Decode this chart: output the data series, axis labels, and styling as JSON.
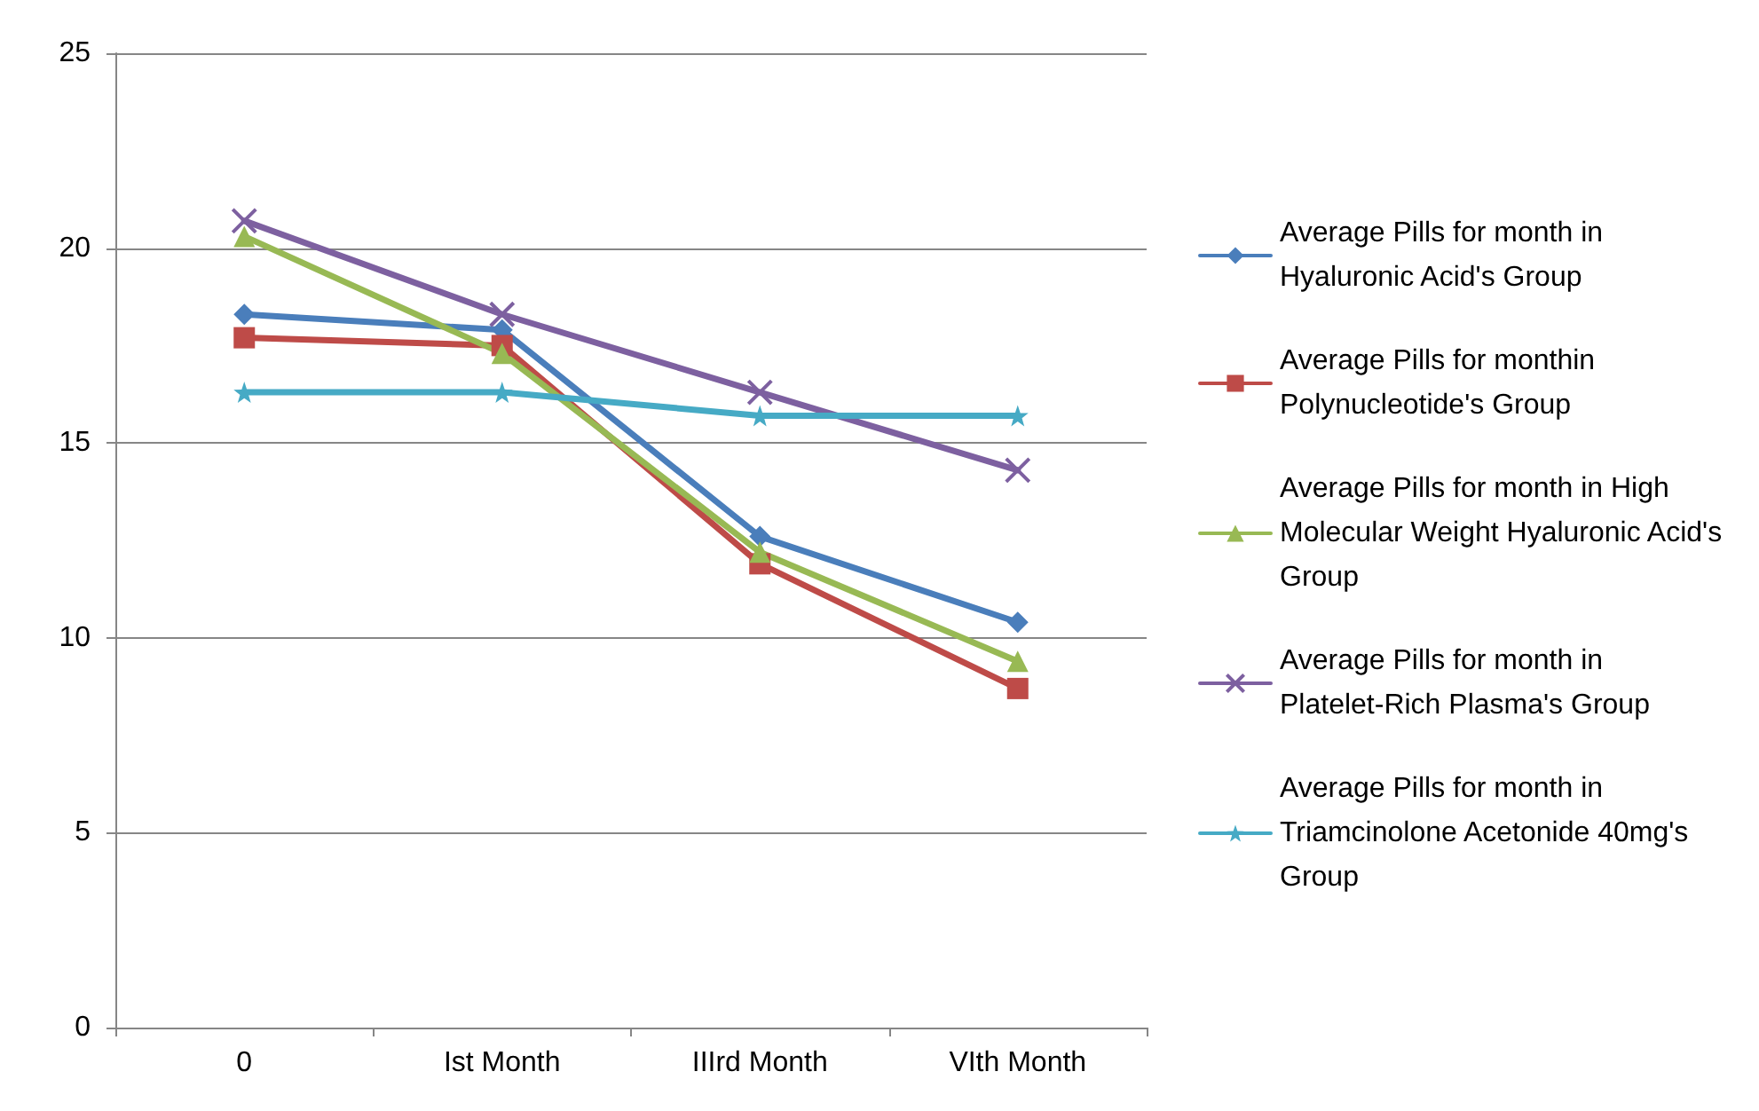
{
  "chart_data": {
    "type": "line",
    "categories": [
      "0",
      "Ist Month",
      "IIIrd Month",
      "VIth Month"
    ],
    "series": [
      {
        "name": "Average Pills for month in Hyaluronic Acid's Group",
        "color": "#4a7ebb",
        "marker": "diamond",
        "values": [
          18.3,
          17.9,
          12.6,
          10.4
        ]
      },
      {
        "name": "Average Pills for monthin Polynucleotide's Group",
        "color": "#be4b48",
        "marker": "square",
        "values": [
          17.7,
          17.5,
          11.9,
          8.7
        ]
      },
      {
        "name": "Average Pills for month in High Molecular Weight Hyaluronic Acid's Group",
        "color": "#98b954",
        "marker": "triangle",
        "values": [
          20.3,
          17.3,
          12.2,
          9.4
        ]
      },
      {
        "name": "Average Pills for month in Platelet-Rich Plasma's Group",
        "color": "#7d60a0",
        "marker": "cross",
        "values": [
          20.7,
          18.3,
          16.3,
          14.3
        ]
      },
      {
        "name": "Average Pills for month in Triamcinolone Acetonide 40mg's Group",
        "color": "#46aac5",
        "marker": "star",
        "values": [
          16.3,
          16.3,
          15.7,
          15.7
        ]
      }
    ],
    "ylim": [
      0,
      25
    ],
    "yticks": [
      0,
      5,
      10,
      15,
      20,
      25
    ],
    "grid": "y",
    "legend": "right"
  }
}
